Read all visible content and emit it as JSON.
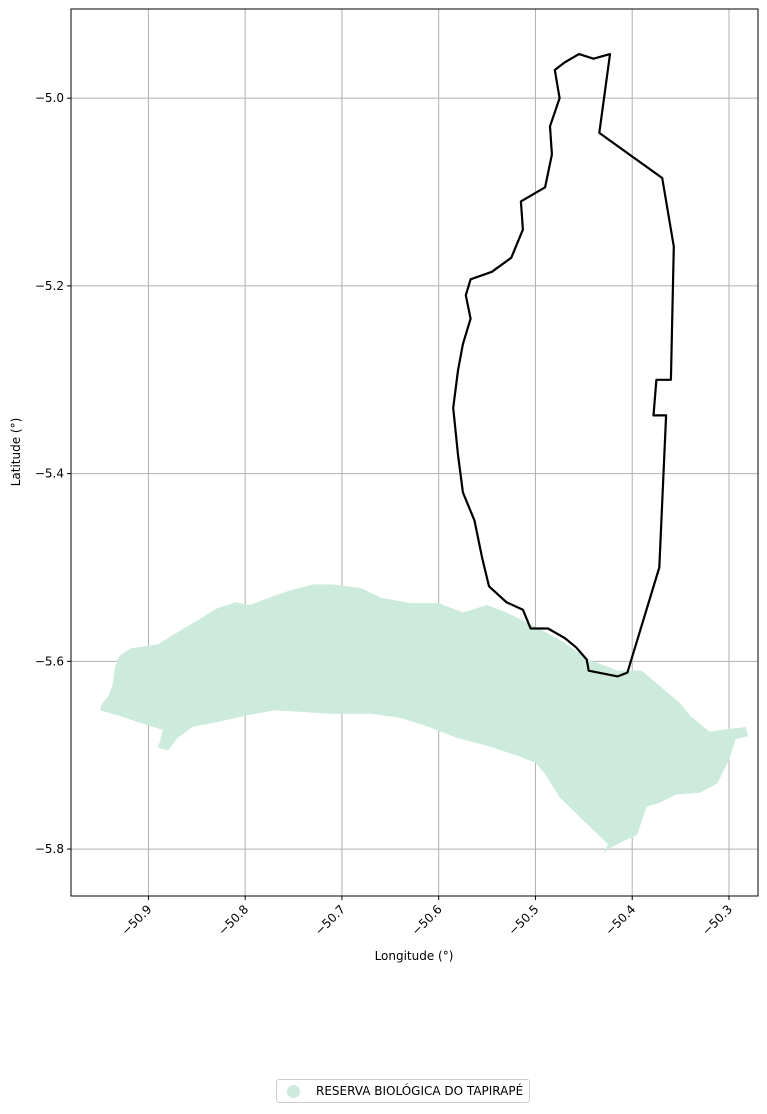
{
  "chart_data": {
    "type": "map",
    "xlabel": "Longitude (°)",
    "ylabel": "Latitude (°)",
    "xlim": [
      -50.98,
      -50.27
    ],
    "ylim": [
      -5.85,
      -4.905
    ],
    "xticks": [
      -50.9,
      -50.8,
      -50.7,
      -50.6,
      -50.5,
      -50.4,
      -50.3
    ],
    "xtick_labels": [
      "−50.9",
      "−50.8",
      "−50.7",
      "−50.6",
      "−50.5",
      "−50.4",
      "−50.3"
    ],
    "yticks": [
      -5.0,
      -5.2,
      -5.4,
      -5.6,
      -5.8
    ],
    "ytick_labels": [
      "−5.0",
      "−5.2",
      "−5.4",
      "−5.6",
      "−5.8"
    ],
    "grid": true,
    "legend_placement": "bottom-center",
    "layers": [
      {
        "name": "RESERVA BIOLÓGICA DO TAPIRAPÉ",
        "kind": "filled-area",
        "color": "#cdebdc",
        "points": [
          [
            -50.948,
            -5.645
          ],
          [
            -50.942,
            -5.638
          ],
          [
            -50.937,
            -5.625
          ],
          [
            -50.935,
            -5.608
          ],
          [
            -50.93,
            -5.594
          ],
          [
            -50.918,
            -5.586
          ],
          [
            -50.89,
            -5.582
          ],
          [
            -50.875,
            -5.572
          ],
          [
            -50.855,
            -5.56
          ],
          [
            -50.83,
            -5.544
          ],
          [
            -50.81,
            -5.537
          ],
          [
            -50.795,
            -5.54
          ],
          [
            -50.78,
            -5.534
          ],
          [
            -50.755,
            -5.525
          ],
          [
            -50.73,
            -5.518
          ],
          [
            -50.71,
            -5.518
          ],
          [
            -50.68,
            -5.522
          ],
          [
            -50.66,
            -5.532
          ],
          [
            -50.63,
            -5.538
          ],
          [
            -50.6,
            -5.538
          ],
          [
            -50.575,
            -5.548
          ],
          [
            -50.55,
            -5.54
          ],
          [
            -50.53,
            -5.548
          ],
          [
            -50.5,
            -5.563
          ],
          [
            -50.47,
            -5.58
          ],
          [
            -50.445,
            -5.598
          ],
          [
            -50.415,
            -5.61
          ],
          [
            -50.39,
            -5.61
          ],
          [
            -50.365,
            -5.632
          ],
          [
            -50.35,
            -5.645
          ],
          [
            -50.34,
            -5.658
          ],
          [
            -50.32,
            -5.675
          ],
          [
            -50.3,
            -5.672
          ],
          [
            -50.283,
            -5.67
          ],
          [
            -50.28,
            -5.68
          ],
          [
            -50.293,
            -5.683
          ],
          [
            -50.3,
            -5.705
          ],
          [
            -50.312,
            -5.73
          ],
          [
            -50.33,
            -5.74
          ],
          [
            -50.355,
            -5.742
          ],
          [
            -50.37,
            -5.75
          ],
          [
            -50.385,
            -5.755
          ],
          [
            -50.39,
            -5.77
          ],
          [
            -50.395,
            -5.785
          ],
          [
            -50.41,
            -5.792
          ],
          [
            -50.425,
            -5.8
          ],
          [
            -50.43,
            -5.805
          ],
          [
            -50.425,
            -5.795
          ],
          [
            -50.445,
            -5.775
          ],
          [
            -50.46,
            -5.76
          ],
          [
            -50.475,
            -5.745
          ],
          [
            -50.49,
            -5.72
          ],
          [
            -50.5,
            -5.708
          ],
          [
            -50.52,
            -5.7
          ],
          [
            -50.55,
            -5.69
          ],
          [
            -50.58,
            -5.682
          ],
          [
            -50.61,
            -5.67
          ],
          [
            -50.64,
            -5.66
          ],
          [
            -50.67,
            -5.656
          ],
          [
            -50.71,
            -5.656
          ],
          [
            -50.74,
            -5.654
          ],
          [
            -50.77,
            -5.652
          ],
          [
            -50.8,
            -5.658
          ],
          [
            -50.83,
            -5.665
          ],
          [
            -50.855,
            -5.67
          ],
          [
            -50.87,
            -5.682
          ],
          [
            -50.88,
            -5.695
          ],
          [
            -50.89,
            -5.692
          ],
          [
            -50.885,
            -5.673
          ],
          [
            -50.91,
            -5.665
          ],
          [
            -50.93,
            -5.658
          ],
          [
            -50.95,
            -5.652
          ]
        ]
      },
      {
        "name": "",
        "kind": "outline",
        "color": "#000000",
        "points": [
          [
            -50.423,
            -4.953
          ],
          [
            -50.434,
            -5.037
          ],
          [
            -50.369,
            -5.085
          ],
          [
            -50.357,
            -5.158
          ],
          [
            -50.36,
            -5.3
          ],
          [
            -50.375,
            -5.3
          ],
          [
            -50.378,
            -5.338
          ],
          [
            -50.365,
            -5.338
          ],
          [
            -50.372,
            -5.5
          ],
          [
            -50.405,
            -5.612
          ],
          [
            -50.415,
            -5.616
          ],
          [
            -50.445,
            -5.61
          ],
          [
            -50.447,
            -5.598
          ],
          [
            -50.458,
            -5.585
          ],
          [
            -50.47,
            -5.575
          ],
          [
            -50.487,
            -5.565
          ],
          [
            -50.505,
            -5.565
          ],
          [
            -50.513,
            -5.545
          ],
          [
            -50.53,
            -5.537
          ],
          [
            -50.548,
            -5.52
          ],
          [
            -50.555,
            -5.49
          ],
          [
            -50.563,
            -5.45
          ],
          [
            -50.575,
            -5.42
          ],
          [
            -50.58,
            -5.38
          ],
          [
            -50.585,
            -5.33
          ],
          [
            -50.58,
            -5.29
          ],
          [
            -50.575,
            -5.262
          ],
          [
            -50.567,
            -5.235
          ],
          [
            -50.572,
            -5.21
          ],
          [
            -50.567,
            -5.193
          ],
          [
            -50.545,
            -5.185
          ],
          [
            -50.525,
            -5.17
          ],
          [
            -50.513,
            -5.14
          ],
          [
            -50.515,
            -5.11
          ],
          [
            -50.49,
            -5.095
          ],
          [
            -50.483,
            -5.06
          ],
          [
            -50.485,
            -5.03
          ],
          [
            -50.475,
            -5.0
          ],
          [
            -50.48,
            -4.97
          ],
          [
            -50.47,
            -4.962
          ],
          [
            -50.455,
            -4.953
          ],
          [
            -50.44,
            -4.958
          ]
        ]
      }
    ]
  },
  "legend": {
    "label": "RESERVA BIOLÓGICA DO TAPIRAPÉ",
    "marker_color": "#cdebdc"
  }
}
